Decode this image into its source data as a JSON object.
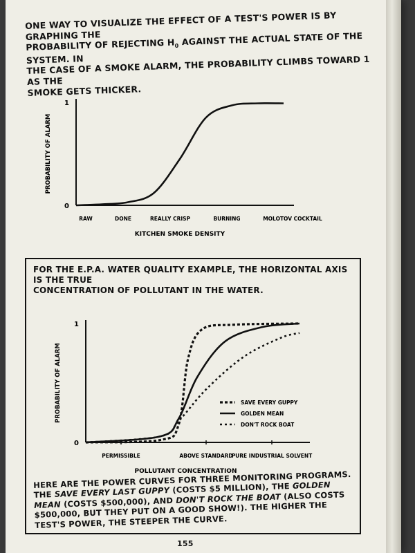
{
  "intro": {
    "line1": "One way to visualize the effect of a test's power is by graphing the",
    "line2": "probability of rejecting H",
    "h0_sub": "0",
    "line2b": " against the actual state of the system. In",
    "line3": "the case of a smoke alarm, the probability climbs toward 1 as the",
    "line4": "smoke gets thicker."
  },
  "chart_data": [
    {
      "type": "line",
      "ylabel": "Probability of alarm",
      "xlabel": "Kitchen smoke density",
      "yticks": [
        "0",
        "1"
      ],
      "ylim": [
        0,
        1
      ],
      "categories": [
        "Raw",
        "Done",
        "Really crisp",
        "Burning",
        "Molotov cocktail"
      ],
      "series": [
        {
          "points": [
            [
              0,
              0.0
            ],
            [
              0.5,
              0.01
            ],
            [
              1,
              0.03
            ],
            [
              1.5,
              0.12
            ],
            [
              2,
              0.45
            ],
            [
              2.5,
              0.85
            ],
            [
              3,
              0.97
            ],
            [
              3.5,
              0.99
            ],
            [
              4,
              0.99
            ]
          ]
        }
      ]
    },
    {
      "type": "line",
      "ylabel": "Probability of alarm",
      "xlabel": "Pollutant concentration",
      "yticks": [
        "0",
        "1"
      ],
      "ylim": [
        0,
        1
      ],
      "categories": [
        "Permissible",
        "Above standard",
        "Pure industrial solvent"
      ],
      "legend": [
        "Save every guppy",
        "Golden mean",
        "Don't rock boat"
      ],
      "series": [
        {
          "name": "Save every guppy",
          "style": "dotted-bold",
          "points": [
            [
              0,
              0.0
            ],
            [
              0.8,
              0.02
            ],
            [
              1.0,
              0.15
            ],
            [
              1.1,
              0.7
            ],
            [
              1.25,
              0.95
            ],
            [
              1.6,
              0.99
            ],
            [
              2.3,
              1.0
            ]
          ]
        },
        {
          "name": "Golden mean",
          "style": "solid",
          "points": [
            [
              0,
              0.0
            ],
            [
              0.8,
              0.05
            ],
            [
              1.0,
              0.2
            ],
            [
              1.2,
              0.55
            ],
            [
              1.5,
              0.85
            ],
            [
              1.9,
              0.97
            ],
            [
              2.3,
              1.0
            ]
          ]
        },
        {
          "name": "Don't rock boat",
          "style": "dotted",
          "points": [
            [
              0,
              0.0
            ],
            [
              0.8,
              0.05
            ],
            [
              1.0,
              0.18
            ],
            [
              1.3,
              0.45
            ],
            [
              1.7,
              0.72
            ],
            [
              2.1,
              0.88
            ],
            [
              2.3,
              0.92
            ]
          ]
        }
      ]
    }
  ],
  "box": {
    "title_line1": "For the E.P.A. water quality example, the horizontal axis is the true",
    "title_line2": "concentration of pollutant in the water.",
    "caption": {
      "a": "Here are the power curves for three monitoring programs. The ",
      "b": "Save every last guppy",
      "c": " (costs $5 million), the ",
      "d": "Golden mean",
      "e": " (costs $500,000), and ",
      "f": "Don't rock the boat",
      "g": " (also costs $500,000, but they put on a good show!). The higher the test's power, the steeper the curve."
    }
  },
  "page_number": "155"
}
